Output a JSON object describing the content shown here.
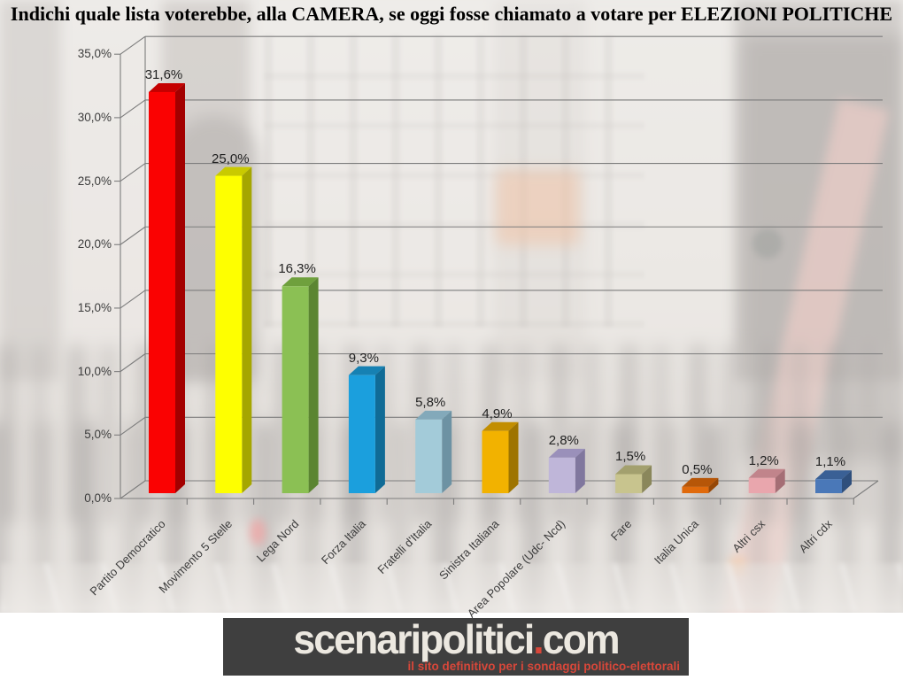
{
  "chart_data": {
    "type": "bar",
    "style": "3d-clustered-column",
    "title": "Indichi quale lista voterebbe, alla CAMERA, se oggi fosse chiamato a votare per ELEZIONI POLITICHE",
    "categories": [
      "Partito Democratico",
      "Movimento 5 Stelle",
      "Lega Nord",
      "Forza Italia",
      "Fratelli d'Italia",
      "Sinistra Italiana",
      "Area Popolare (Udc- Ncd)",
      "Fare",
      "Italia Unica",
      "Altri csx",
      "Altri cdx"
    ],
    "values": [
      31.6,
      25.0,
      16.3,
      9.3,
      5.8,
      4.9,
      2.8,
      1.5,
      0.5,
      1.2,
      1.1
    ],
    "value_labels": [
      "31,6%",
      "25,0%",
      "16,3%",
      "9,3%",
      "5,8%",
      "4,9%",
      "2,8%",
      "1,5%",
      "0,5%",
      "1,2%",
      "1,1%"
    ],
    "bar_colors": [
      {
        "front": "#fa0202",
        "top": "#c50000",
        "side": "#a30000"
      },
      {
        "front": "#feff00",
        "top": "#c9ca00",
        "side": "#a5a600"
      },
      {
        "front": "#8bc054",
        "top": "#6fa03d",
        "side": "#5b8531"
      },
      {
        "front": "#1b9fdd",
        "top": "#1681b3",
        "side": "#106b96"
      },
      {
        "front": "#a3cbd9",
        "top": "#83a9ba",
        "side": "#6d92a3"
      },
      {
        "front": "#f2b200",
        "top": "#c28e00",
        "side": "#9e7400"
      },
      {
        "front": "#bfb6d9",
        "top": "#9a90ba",
        "side": "#80779e"
      },
      {
        "front": "#c8c48e",
        "top": "#a3a06e",
        "side": "#8a875b"
      },
      {
        "front": "#e06a0c",
        "top": "#b65608",
        "side": "#964706"
      },
      {
        "front": "#e9a6ad",
        "top": "#c1848b",
        "side": "#a56e75"
      },
      {
        "front": "#4a78b8",
        "top": "#3a6095",
        "side": "#2f4f7c"
      }
    ],
    "y_axis": {
      "min": 0,
      "max": 35,
      "step": 5,
      "tick_labels": [
        "0,0%",
        "5,0%",
        "10,0%",
        "15,0%",
        "20,0%",
        "25,0%",
        "30,0%",
        "35,0%"
      ]
    },
    "x_axis": {
      "label_rotation_deg": 45
    },
    "grid": true,
    "legend": "none",
    "axis_color": "#7d7d7d"
  },
  "footer": {
    "site": "scenaripolitici",
    "dot": ".",
    "tld": "com",
    "tagline": "il sito definitivo per i sondaggi politico-elettorali",
    "colors": {
      "background": "#3f3f3f",
      "text": "#ece8e0",
      "accent": "#d8473a"
    }
  }
}
